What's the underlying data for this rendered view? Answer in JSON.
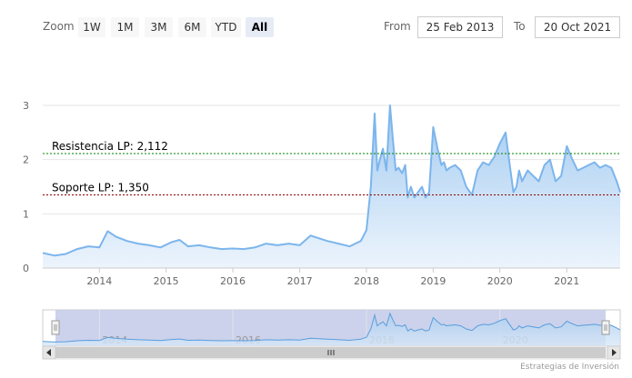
{
  "range_selector": {
    "zoom_label": "Zoom",
    "buttons": [
      "1W",
      "1M",
      "3M",
      "6M",
      "YTD",
      "All"
    ],
    "selected": "All",
    "from_label": "From",
    "from_value": "25 Feb 2013",
    "to_label": "To",
    "to_value": "20 Oct 2021"
  },
  "credits": "Estrategias de Inversión",
  "colors": {
    "series_line": "#7cb5ec",
    "series_fill_top": "#9cc7f0",
    "resistance_line": "#008000",
    "support_line": "#8b0000",
    "navigator_mask": "#c9d0ea"
  },
  "chart_data": {
    "type": "area",
    "ylim": [
      0,
      3
    ],
    "yticks": [
      "0",
      "1",
      "2",
      "3"
    ],
    "xticks": [
      "2014",
      "2015",
      "2016",
      "2017",
      "2018",
      "2019",
      "2020",
      "2021"
    ],
    "navigator_xticks": [
      "2014",
      "2016",
      "2018",
      "2020"
    ],
    "x_range": [
      "2013-02-25",
      "2021-10-20"
    ],
    "plot_lines": [
      {
        "label": "Resistencia LP: 2,112",
        "value": 2.112
      },
      {
        "label": "Soporte LP: 1,350",
        "value": 1.35
      }
    ],
    "series": [
      {
        "x": [
          "2013-02-25",
          "2013-05-01",
          "2013-07-01",
          "2013-09-01",
          "2013-11-01",
          "2014-01-01",
          "2014-02-15",
          "2014-04-01",
          "2014-06-01",
          "2014-08-01",
          "2014-10-01",
          "2014-12-01",
          "2015-02-01",
          "2015-03-15",
          "2015-05-01",
          "2015-07-01",
          "2015-09-01",
          "2015-11-01",
          "2016-01-01",
          "2016-03-01",
          "2016-05-01",
          "2016-07-01",
          "2016-09-01",
          "2016-11-01",
          "2017-01-01",
          "2017-03-01",
          "2017-04-15",
          "2017-06-01",
          "2017-08-01",
          "2017-10-01",
          "2017-12-01",
          "2018-01-01",
          "2018-01-25",
          "2018-02-15",
          "2018-03-01",
          "2018-03-15",
          "2018-04-01",
          "2018-04-20",
          "2018-05-10",
          "2018-05-25",
          "2018-06-10",
          "2018-06-25",
          "2018-07-15",
          "2018-08-01",
          "2018-08-15",
          "2018-09-01",
          "2018-09-20",
          "2018-10-10",
          "2018-11-01",
          "2018-11-20",
          "2018-12-10",
          "2019-01-01",
          "2019-01-25",
          "2019-02-15",
          "2019-03-01",
          "2019-03-15",
          "2019-04-01",
          "2019-05-01",
          "2019-06-01",
          "2019-07-01",
          "2019-08-01",
          "2019-09-01",
          "2019-10-01",
          "2019-11-01",
          "2019-12-01",
          "2020-01-01",
          "2020-02-01",
          "2020-02-20",
          "2020-03-15",
          "2020-04-01",
          "2020-04-15",
          "2020-05-01",
          "2020-06-01",
          "2020-07-01",
          "2020-08-01",
          "2020-09-01",
          "2020-10-01",
          "2020-11-01",
          "2020-12-01",
          "2021-01-01",
          "2021-02-01",
          "2021-03-01",
          "2021-04-01",
          "2021-05-01",
          "2021-06-01",
          "2021-07-01",
          "2021-08-01",
          "2021-09-01",
          "2021-10-01",
          "2021-10-20"
        ],
        "y": [
          0.28,
          0.23,
          0.26,
          0.35,
          0.4,
          0.38,
          0.68,
          0.58,
          0.5,
          0.45,
          0.42,
          0.38,
          0.48,
          0.52,
          0.4,
          0.42,
          0.38,
          0.35,
          0.36,
          0.35,
          0.38,
          0.45,
          0.42,
          0.45,
          0.42,
          0.6,
          0.55,
          0.5,
          0.45,
          0.4,
          0.5,
          0.7,
          1.5,
          2.85,
          1.8,
          2.0,
          2.2,
          1.8,
          3.0,
          2.4,
          1.8,
          1.85,
          1.75,
          1.9,
          1.3,
          1.5,
          1.3,
          1.4,
          1.5,
          1.3,
          1.4,
          2.6,
          2.2,
          1.9,
          1.95,
          1.8,
          1.85,
          1.9,
          1.8,
          1.5,
          1.35,
          1.8,
          1.95,
          1.9,
          2.05,
          2.3,
          2.5,
          2.0,
          1.4,
          1.5,
          1.8,
          1.6,
          1.8,
          1.7,
          1.6,
          1.9,
          2.0,
          1.6,
          1.7,
          2.25,
          2.0,
          1.8,
          1.85,
          1.9,
          1.95,
          1.85,
          1.9,
          1.85,
          1.6,
          1.4
        ]
      }
    ]
  }
}
